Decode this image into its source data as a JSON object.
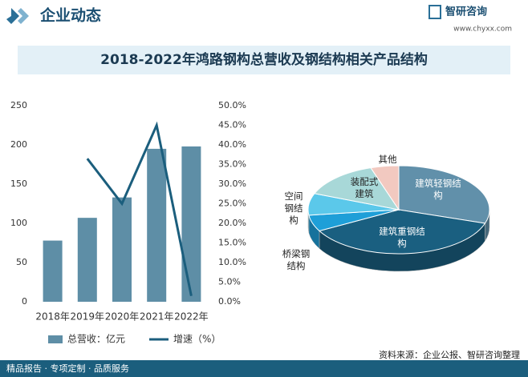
{
  "header": {
    "title": "企业动态",
    "brand": "智研咨询",
    "url": "www.chyxx.com"
  },
  "chart_data": [
    {
      "type": "bar",
      "title": "2018-2022年鸿路钢构总营收及钢结构相关产品结构",
      "categories": [
        "2018年",
        "2019年",
        "2020年",
        "2021年",
        "2022年"
      ],
      "series": [
        {
          "name": "总营收：亿元",
          "type": "bar",
          "color": "#5e8ea6",
          "values": [
            78,
            107,
            133,
            195,
            198
          ]
        },
        {
          "name": "增速（%）",
          "type": "line",
          "axis": "y2",
          "color": "#1b5e7d",
          "values": [
            null,
            36.5,
            25,
            45,
            1.5
          ]
        }
      ],
      "ylim": [
        0,
        250
      ],
      "yticks": [
        0,
        50,
        100,
        150,
        200,
        250
      ],
      "y2lim": [
        0,
        50
      ],
      "y2ticks": [
        {
          "value": 0,
          "label": "0.0%"
        },
        {
          "value": 5,
          "label": "5.0%"
        },
        {
          "value": 10,
          "label": "10.0%"
        },
        {
          "value": 15,
          "label": "15.0%"
        },
        {
          "value": 20,
          "label": "20.0%"
        },
        {
          "value": 25,
          "label": "25.0%"
        },
        {
          "value": 30,
          "label": "30.0%"
        },
        {
          "value": 35,
          "label": "35.0%"
        },
        {
          "value": 40,
          "label": "40.0%"
        },
        {
          "value": 45,
          "label": "45.0%"
        },
        {
          "value": 50,
          "label": "50.0%"
        }
      ]
    },
    {
      "type": "pie",
      "categories": [
        "建筑轻钢结构",
        "建筑重钢结构",
        "桥梁钢结构",
        "空间钢结构",
        "装配式建筑",
        "其他"
      ],
      "values": [
        30,
        37,
        6,
        8,
        14,
        5
      ],
      "colors": [
        "#6190aa",
        "#1a5f80",
        "#1e9fd8",
        "#5bc8ea",
        "#a8d8d8",
        "#f2c9c0"
      ]
    }
  ],
  "footer": {
    "left": "精品报告 · 专项定制 · 品质服务",
    "source": "资料来源：企业公报、智研咨询整理"
  }
}
